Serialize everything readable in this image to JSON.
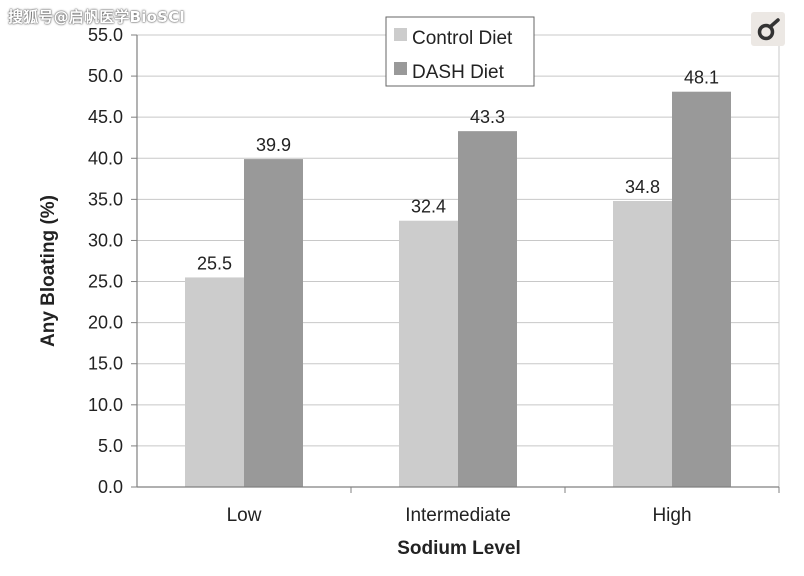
{
  "watermark": "搜狐号@启帆医学BioSCI",
  "logo_icon": "publisher-logo-icon",
  "colors": {
    "control": "#cccccc",
    "dash": "#999999",
    "grid": "#c8c8c8",
    "axis": "#808080",
    "text": "#222222"
  },
  "chart_data": {
    "type": "bar",
    "xlabel": "Sodium Level",
    "ylabel": "Any Bloating (%)",
    "ylim": [
      0,
      55
    ],
    "ytick_step": 5,
    "ytick_labels": [
      "0.0",
      "5.0",
      "10.0",
      "15.0",
      "20.0",
      "25.0",
      "30.0",
      "35.0",
      "40.0",
      "45.0",
      "50.0",
      "55.0"
    ],
    "categories": [
      "Low",
      "Intermediate",
      "High"
    ],
    "series": [
      {
        "name": "Control Diet",
        "values": [
          25.5,
          32.4,
          34.8
        ],
        "labels": [
          "25.5",
          "32.4",
          "34.8"
        ]
      },
      {
        "name": "DASH Diet",
        "values": [
          39.9,
          43.3,
          48.1
        ],
        "labels": [
          "39.9",
          "43.3",
          "48.1"
        ]
      }
    ],
    "legend_position": "top-center",
    "grid": true
  }
}
